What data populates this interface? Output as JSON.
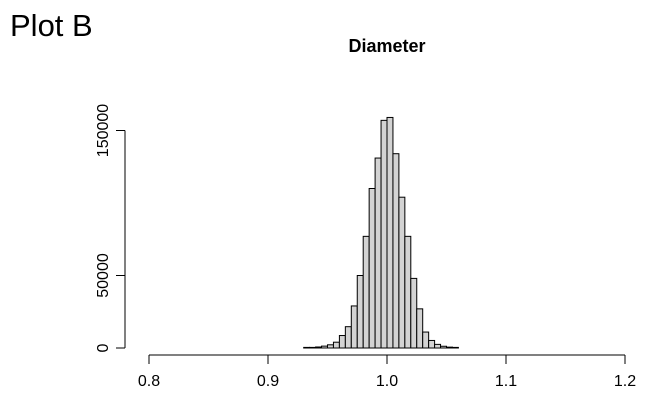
{
  "panel_label": "Plot B",
  "chart_data": {
    "type": "bar",
    "subtype": "histogram",
    "title": "Diameter",
    "xlabel": "",
    "ylabel": "",
    "xlim": [
      0.8,
      1.2
    ],
    "ylim": [
      0,
      160000
    ],
    "x_ticks": [
      0.8,
      0.9,
      1.0,
      1.1,
      1.2
    ],
    "x_tick_labels": [
      "0.8",
      "0.9",
      "1.0",
      "1.1",
      "1.2"
    ],
    "y_ticks": [
      0,
      50000,
      150000
    ],
    "y_tick_labels": [
      "0",
      "50000",
      "150000"
    ],
    "bin_width": 0.005,
    "bin_starts": [
      0.93,
      0.935,
      0.94,
      0.945,
      0.95,
      0.955,
      0.96,
      0.965,
      0.97,
      0.975,
      0.98,
      0.985,
      0.99,
      0.995,
      1.0,
      1.005,
      1.01,
      1.015,
      1.02,
      1.025,
      1.03,
      1.035,
      1.04,
      1.045,
      1.05,
      1.055
    ],
    "values": [
      200,
      300,
      700,
      1300,
      2200,
      4000,
      8600,
      14700,
      29000,
      50000,
      77000,
      110000,
      131000,
      157000,
      159000,
      134000,
      104000,
      77000,
      48000,
      27000,
      11000,
      5200,
      2500,
      1200,
      600,
      300
    ],
    "bar_fill": "#d3d3d3",
    "bar_stroke": "#000000",
    "grid": false,
    "legend": "none"
  }
}
